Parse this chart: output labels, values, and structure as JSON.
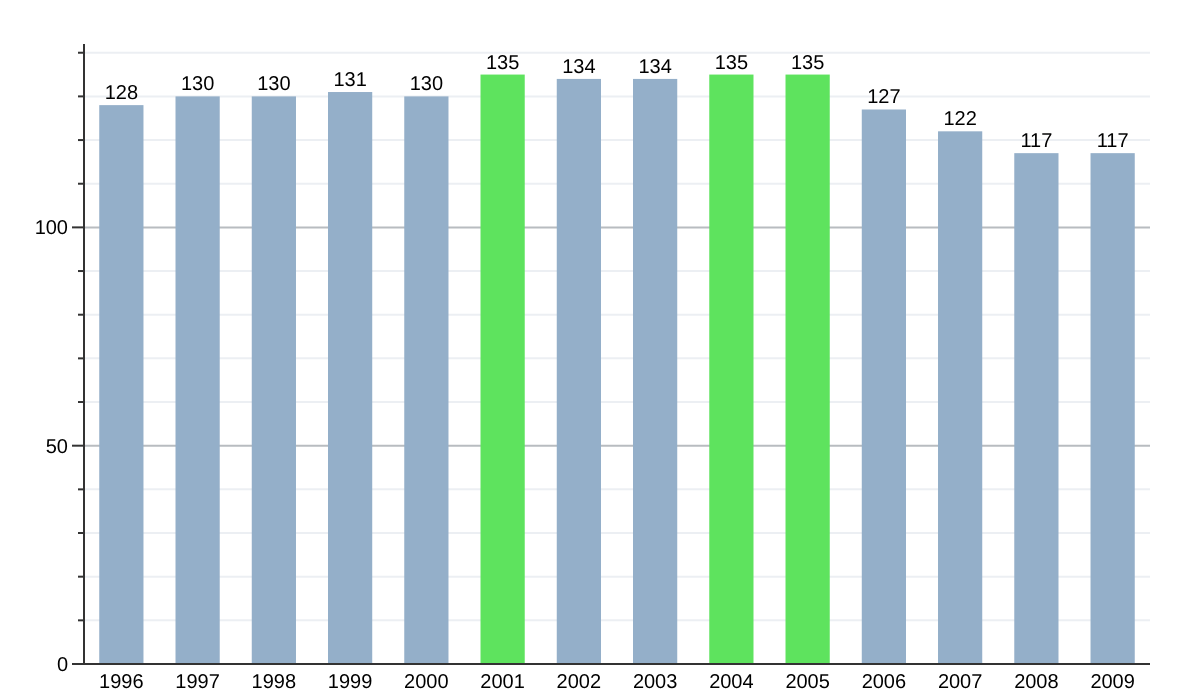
{
  "chart_data": {
    "type": "bar",
    "categories": [
      "1996",
      "1997",
      "1998",
      "1999",
      "2000",
      "2001",
      "2002",
      "2003",
      "2004",
      "2005",
      "2006",
      "2007",
      "2008",
      "2009"
    ],
    "values": [
      128,
      130,
      130,
      131,
      130,
      135,
      134,
      134,
      135,
      135,
      127,
      122,
      117,
      117
    ],
    "colors": [
      "#94afc9",
      "#94afc9",
      "#94afc9",
      "#94afc9",
      "#94afc9",
      "#5ee35e",
      "#94afc9",
      "#94afc9",
      "#5ee35e",
      "#5ee35e",
      "#94afc9",
      "#94afc9",
      "#94afc9",
      "#94afc9"
    ],
    "ylim": [
      0,
      142
    ],
    "yticks": [
      0,
      {
        "value": 10,
        "label": null
      },
      {
        "value": 20,
        "label": null
      },
      {
        "value": 30,
        "label": null
      },
      {
        "value": 40,
        "label": null
      },
      50,
      {
        "value": 60,
        "label": null
      },
      {
        "value": 70,
        "label": null
      },
      {
        "value": 80,
        "label": null
      },
      {
        "value": 90,
        "label": null
      },
      100,
      {
        "value": 110,
        "label": null
      },
      {
        "value": 120,
        "label": null
      },
      {
        "value": 130,
        "label": null
      },
      {
        "value": 140,
        "label": null
      }
    ],
    "grid": "y",
    "data_labels": true
  }
}
